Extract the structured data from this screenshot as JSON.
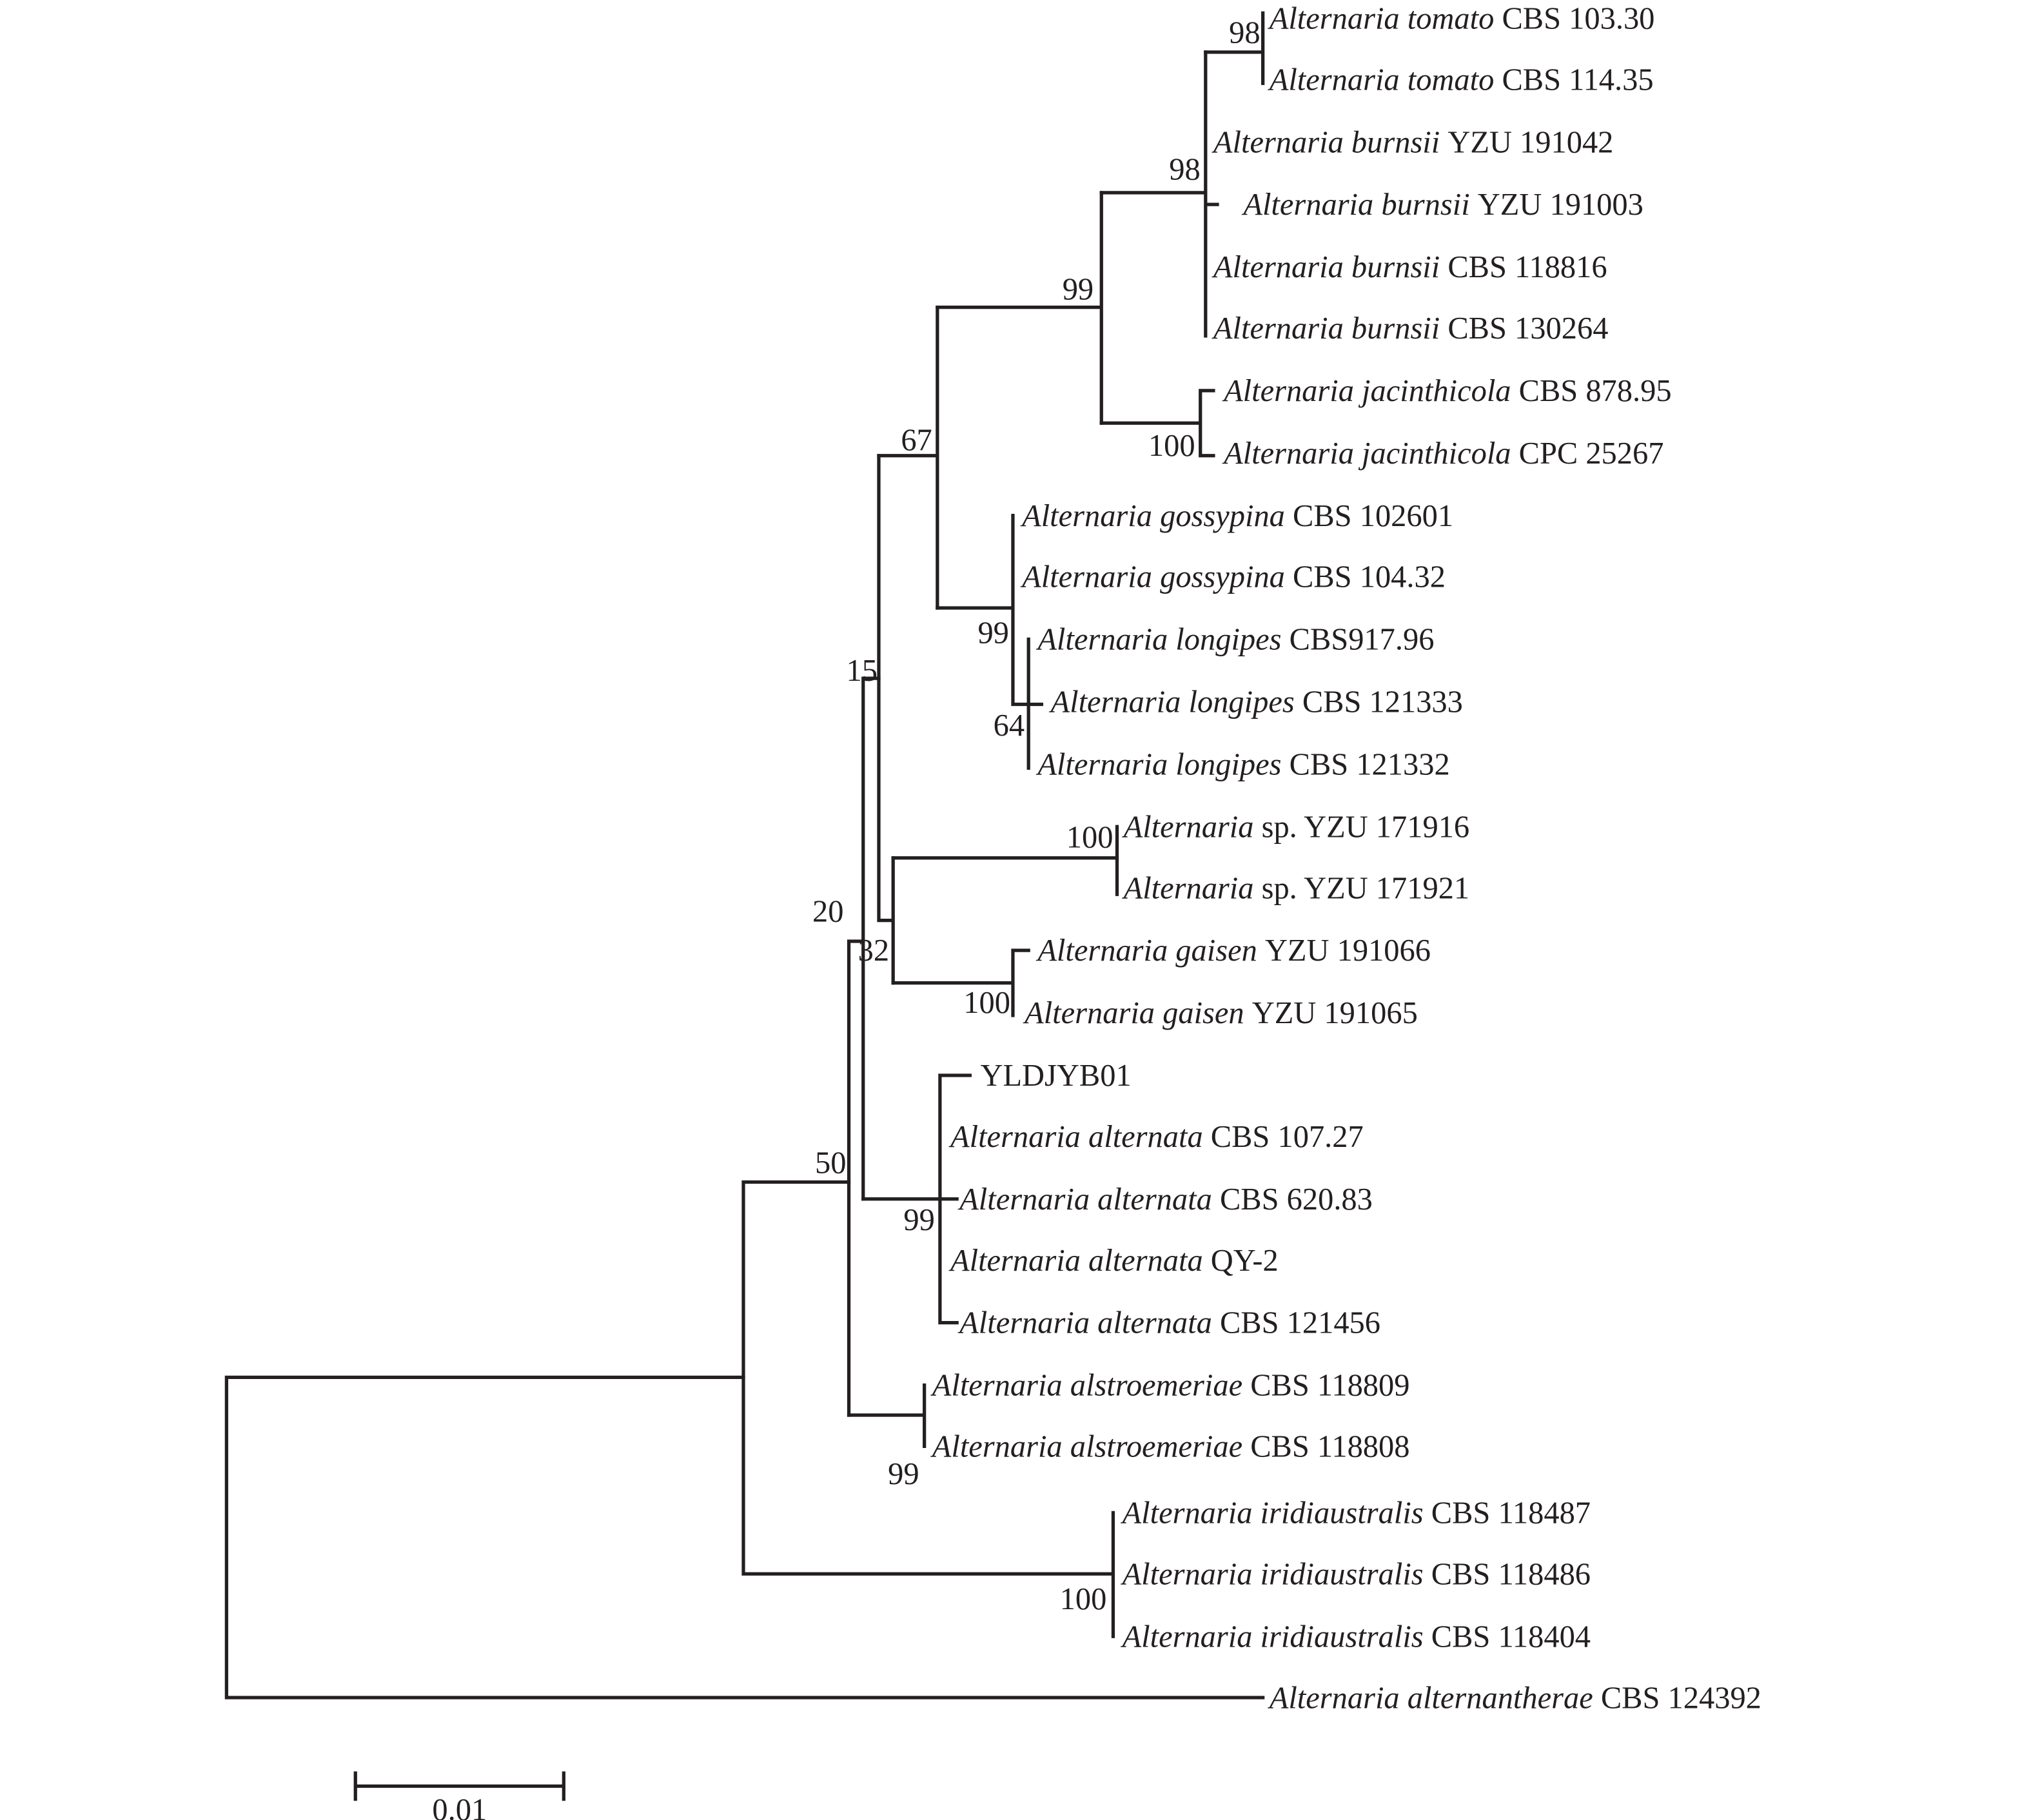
{
  "tree": {
    "leaves": [
      {
        "italic": "Alternaria tomato",
        "plain": "CBS 103.30"
      },
      {
        "italic": "Alternaria tomato",
        "plain": "CBS 114.35"
      },
      {
        "italic": "Alternaria burnsii",
        "plain": "YZU 191042"
      },
      {
        "italic": "Alternaria burnsii",
        "plain": "YZU 191003"
      },
      {
        "italic": "Alternaria burnsii",
        "plain": "CBS 118816"
      },
      {
        "italic": "Alternaria burnsii",
        "plain": "CBS 130264"
      },
      {
        "italic": "Alternaria jacinthicola",
        "plain": "CBS 878.95"
      },
      {
        "italic": "Alternaria jacinthicola",
        "plain": "CPC 25267"
      },
      {
        "italic": "Alternaria gossypina",
        "plain": "CBS 102601"
      },
      {
        "italic": "Alternaria gossypina",
        "plain": "CBS 104.32"
      },
      {
        "italic": "Alternaria longipes",
        "plain": "CBS917.96"
      },
      {
        "italic": "Alternaria longipes",
        "plain": "CBS 121333"
      },
      {
        "italic": "Alternaria longipes",
        "plain": "CBS 121332"
      },
      {
        "italic": "Alternaria",
        "plain": "sp. YZU 171916"
      },
      {
        "italic": "Alternaria",
        "plain": "sp. YZU 171921"
      },
      {
        "italic": "Alternaria gaisen",
        "plain": "YZU 191066"
      },
      {
        "italic": "Alternaria gaisen",
        "plain": "YZU 191065"
      },
      {
        "italic": "",
        "plain": "YLDJYB01"
      },
      {
        "italic": "Alternaria alternata",
        "plain": "CBS 107.27"
      },
      {
        "italic": "Alternaria alternata",
        "plain": "CBS 620.83"
      },
      {
        "italic": "Alternaria alternata",
        "plain": "QY-2"
      },
      {
        "italic": "Alternaria alternata",
        "plain": "CBS 121456"
      },
      {
        "italic": "Alternaria alstroemeriae",
        "plain": "CBS 118809"
      },
      {
        "italic": "Alternaria alstroemeriae",
        "plain": "CBS 118808"
      },
      {
        "italic": "Alternaria iridiaustralis",
        "plain": "CBS 118487"
      },
      {
        "italic": "Alternaria iridiaustralis",
        "plain": "CBS 118486"
      },
      {
        "italic": "Alternaria iridiaustralis",
        "plain": "CBS 118404"
      },
      {
        "italic": "Alternaria alternantherae",
        "plain": "CBS 124392"
      }
    ],
    "bootstrap": [
      "98",
      "98",
      "99",
      "100",
      "67",
      "99",
      "64",
      "15",
      "100",
      "100",
      "20",
      "32",
      "99",
      "99",
      "50",
      "100"
    ],
    "scale_bar_label": "0.01"
  }
}
